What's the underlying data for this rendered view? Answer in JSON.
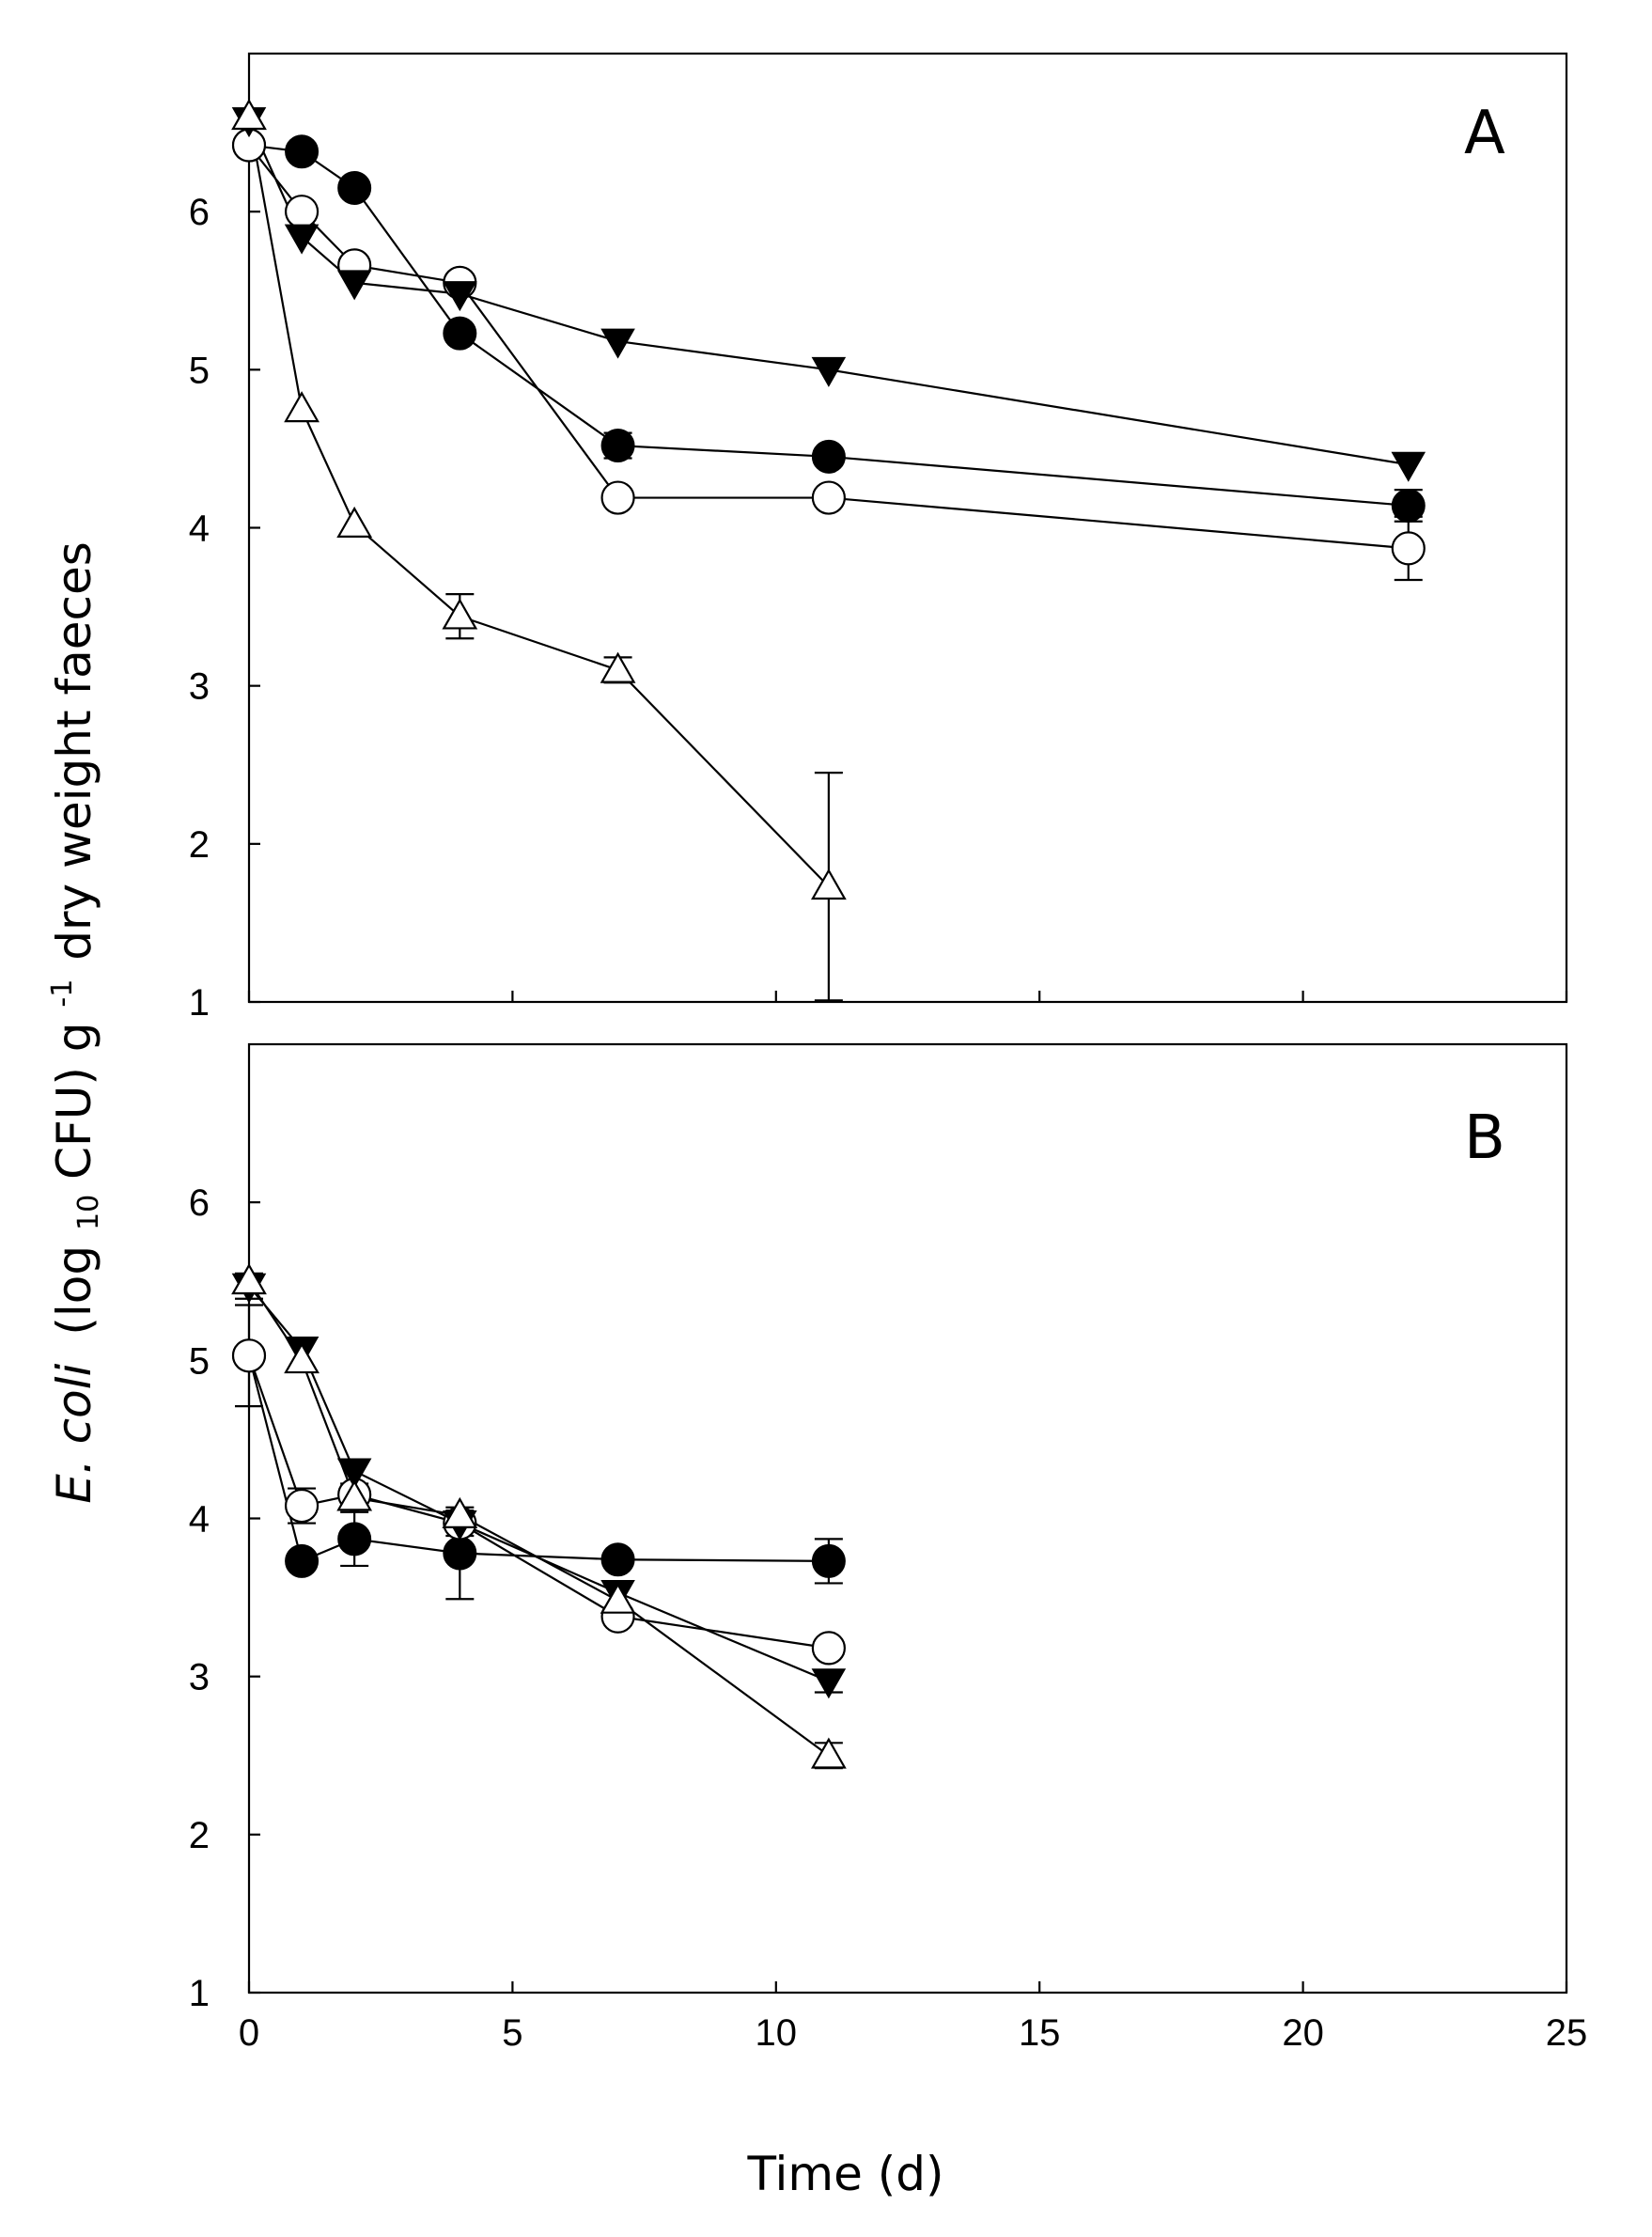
{
  "chart_data": [
    {
      "type": "line",
      "panel": "A",
      "xlabel": "Time (d)",
      "ylabel": "E. coli (log10 CFU) g-1 dry weight faeces",
      "xlim": [
        0,
        25
      ],
      "ylim": [
        1,
        7
      ],
      "xticks": [
        0,
        5,
        10,
        15,
        20,
        25
      ],
      "yticks": [
        1,
        2,
        3,
        4,
        5,
        6
      ],
      "series": [
        {
          "name": "filled-circle",
          "marker": "circle-filled",
          "x": [
            0,
            1,
            2,
            4,
            7,
            11,
            22
          ],
          "y": [
            6.42,
            6.38,
            6.15,
            5.23,
            4.52,
            4.45,
            4.14
          ],
          "err": [
            0.05,
            0.05,
            0.05,
            0.06,
            0.08,
            0.05,
            0.1
          ]
        },
        {
          "name": "open-circle",
          "marker": "circle-open",
          "x": [
            0,
            1,
            2,
            4,
            7,
            11,
            22
          ],
          "y": [
            6.42,
            6.0,
            5.66,
            5.55,
            4.19,
            4.19,
            3.87
          ],
          "err": [
            0.05,
            0.05,
            0.05,
            0.05,
            0.06,
            0.05,
            0.2
          ]
        },
        {
          "name": "filled-triangle-down",
          "marker": "triangle-down-filled",
          "x": [
            0,
            1,
            2,
            4,
            7,
            11,
            22
          ],
          "y": [
            6.58,
            5.84,
            5.55,
            5.48,
            5.18,
            5.0,
            4.4
          ],
          "err": [
            0.05,
            0.05,
            0.05,
            0.05,
            0.05,
            0.05,
            0.05
          ]
        },
        {
          "name": "open-triangle-up",
          "marker": "triangle-up-open",
          "x": [
            0,
            1,
            2,
            4,
            7,
            11
          ],
          "y": [
            6.6,
            4.75,
            4.02,
            3.44,
            3.1,
            1.73
          ],
          "err": [
            0.05,
            0.05,
            0.05,
            0.14,
            0.08,
            0.72
          ]
        }
      ]
    },
    {
      "type": "line",
      "panel": "B",
      "xlabel": "Time (d)",
      "ylabel": "E. coli (log10 CFU) g-1 dry weight faeces",
      "xlim": [
        0,
        25
      ],
      "ylim": [
        1,
        7
      ],
      "xticks": [
        0,
        5,
        10,
        15,
        20,
        25
      ],
      "yticks": [
        1,
        2,
        3,
        4,
        5,
        6
      ],
      "series": [
        {
          "name": "filled-circle",
          "marker": "circle-filled",
          "x": [
            0,
            1,
            2,
            4,
            7,
            11
          ],
          "y": [
            5.03,
            3.73,
            3.87,
            3.78,
            3.74,
            3.73
          ],
          "err": [
            0.05,
            0.06,
            0.17,
            0.29,
            0.05,
            0.14
          ]
        },
        {
          "name": "open-circle",
          "marker": "circle-open",
          "x": [
            0,
            1,
            2,
            4,
            7,
            11
          ],
          "y": [
            5.03,
            4.08,
            4.15,
            3.97,
            3.38,
            3.18
          ],
          "err": [
            0.32,
            0.11,
            0.07,
            0.08,
            0.05,
            0.05
          ]
        },
        {
          "name": "filled-triangle-down",
          "marker": "triangle-down-filled",
          "x": [
            0,
            1,
            2,
            4,
            7,
            11
          ],
          "y": [
            5.47,
            5.07,
            4.3,
            3.97,
            3.53,
            2.97
          ],
          "err": [
            0.08,
            0.05,
            0.05,
            0.05,
            0.05,
            0.07
          ]
        },
        {
          "name": "open-triangle-up",
          "marker": "triangle-up-open",
          "x": [
            0,
            1,
            2,
            4,
            7,
            11
          ],
          "y": [
            5.5,
            5.0,
            4.13,
            4.02,
            3.48,
            2.5
          ],
          "err": [
            0.05,
            0.05,
            0.05,
            0.06,
            0.05,
            0.08
          ]
        }
      ]
    }
  ],
  "labels": {
    "panel_a": "A",
    "panel_b": "B",
    "x_title": "Time (d)",
    "y_title_species": "E. coli",
    "y_title_open": "(log",
    "y_title_sub": "10",
    "y_title_mid": " CFU) g",
    "y_title_sup": "-1",
    "y_title_end": "dry weight faeces"
  }
}
